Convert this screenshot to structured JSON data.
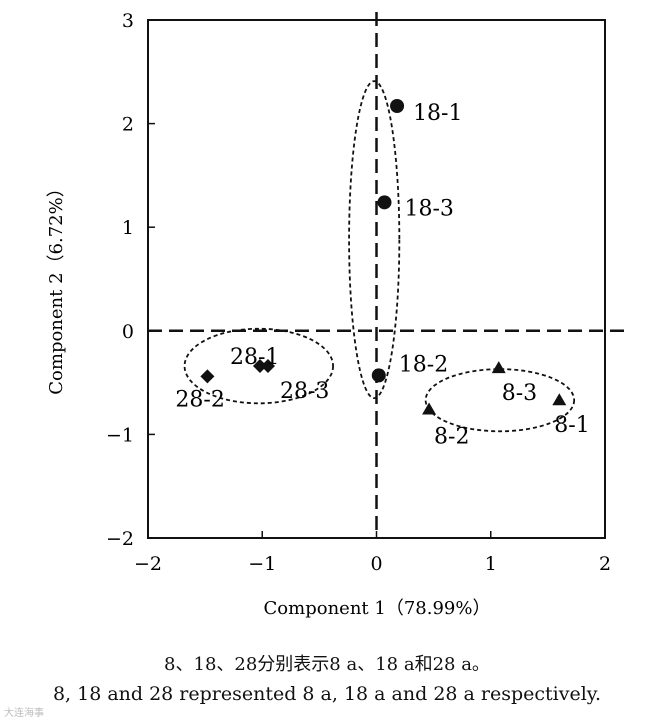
{
  "chart_data": {
    "type": "scatter",
    "xlabel": "Component 1（78.99%）",
    "ylabel": "Component 2（6.72%）",
    "xlim": [
      -2,
      2
    ],
    "ylim": [
      -2,
      3
    ],
    "x_ticks": [
      -2,
      -1,
      0,
      1,
      2
    ],
    "y_ticks": [
      -2,
      -1,
      0,
      1,
      2,
      3
    ],
    "x_tick_labels": [
      "−2",
      "−1",
      "0",
      "1",
      "2"
    ],
    "y_tick_labels": [
      "−2",
      "−1",
      "0",
      "1",
      "2",
      "3"
    ],
    "reference_lines": {
      "x": 0,
      "y": 0,
      "style": "dashed"
    },
    "series": [
      {
        "name": "8 a",
        "marker": "triangle",
        "points": [
          {
            "label": "8-1",
            "x": 1.6,
            "y": -0.67
          },
          {
            "label": "8-2",
            "x": 0.46,
            "y": -0.76
          },
          {
            "label": "8-3",
            "x": 1.07,
            "y": -0.36
          }
        ]
      },
      {
        "name": "18 a",
        "marker": "circle",
        "points": [
          {
            "label": "18-1",
            "x": 0.18,
            "y": 2.17
          },
          {
            "label": "18-2",
            "x": 0.02,
            "y": -0.43
          },
          {
            "label": "18-3",
            "x": 0.07,
            "y": 1.24
          }
        ]
      },
      {
        "name": "28 a",
        "marker": "diamond",
        "points": [
          {
            "label": "28-1",
            "x": -1.02,
            "y": -0.34
          },
          {
            "label": "28-2",
            "x": -1.48,
            "y": -0.44
          },
          {
            "label": "28-3",
            "x": -0.95,
            "y": -0.34
          }
        ]
      }
    ],
    "groups": [
      {
        "name": "8 a",
        "cx": 1.08,
        "cy": -0.67,
        "rx": 0.65,
        "ry": 0.3
      },
      {
        "name": "18 a",
        "cx": -0.02,
        "cy": 0.88,
        "rx": 0.22,
        "ry": 1.53
      },
      {
        "name": "28 a",
        "cx": -1.03,
        "cy": -0.34,
        "rx": 0.65,
        "ry": 0.36
      }
    ]
  },
  "caption": {
    "zh": "8、18、28分别表示8 a、18 a和28 a。",
    "en": "8, 18 and 28 represented 8 a, 18 a and 28 a respectively."
  },
  "watermark": "大连海事"
}
